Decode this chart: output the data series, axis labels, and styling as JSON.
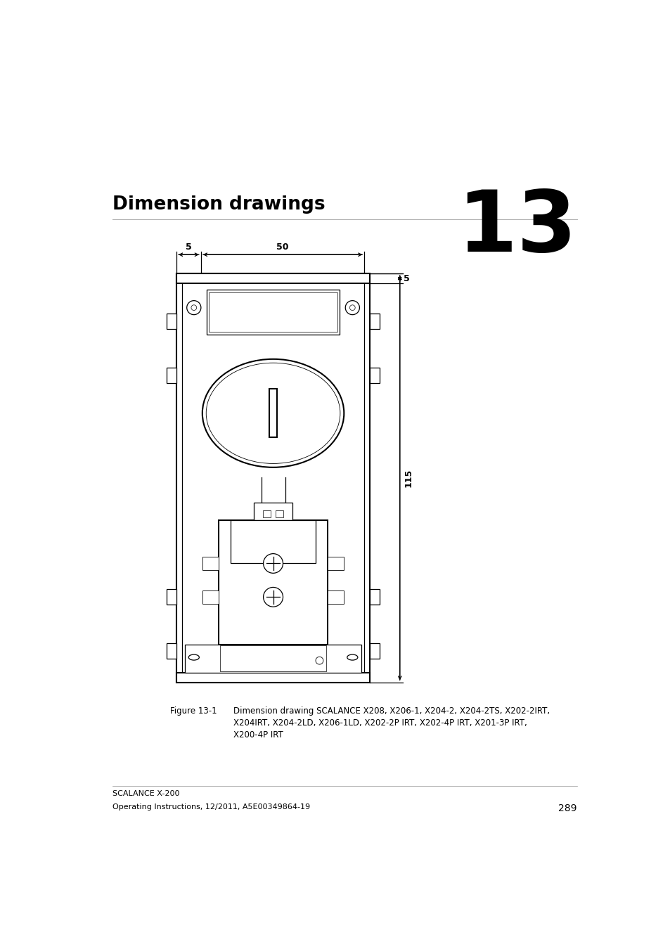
{
  "title": "Dimension drawings",
  "chapter_number": "13",
  "figure_label": "Figure 13-1",
  "figure_caption_1": "Dimension drawing SCALANCE X208, X206-1, X204-2, X204-2TS, X202-2IRT,",
  "figure_caption_2": "X204IRT, X204-2LD, X206-1LD, X202-2P IRT, X202-4P IRT, X201-3P IRT,",
  "figure_caption_3": "X200-4P IRT",
  "footer_line1": "SCALANCE X-200",
  "footer_line2": "Operating Instructions, 12/2011, A5E00349864-19",
  "footer_page": "289",
  "dim_width": "50",
  "dim_left": "5",
  "dim_top": "5",
  "dim_height": "115",
  "bg_color": "#ffffff",
  "line_color": "#000000"
}
